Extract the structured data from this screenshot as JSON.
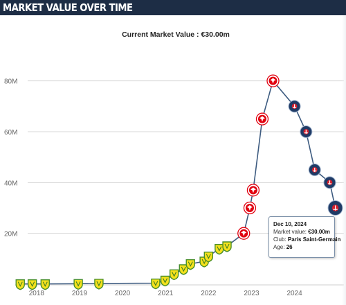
{
  "header": {
    "title": "MARKET VALUE OVER TIME"
  },
  "current_value_text": "Current Market Value : €30.00m",
  "tooltip": {
    "date": "Dec 10, 2024",
    "market_value_label": "Market value:",
    "market_value": "€30.00m",
    "club_label": "Club:",
    "club": "Paris Saint-Germain",
    "age_label": "Age:",
    "age": "26"
  },
  "colors": {
    "header_bg": "#1d2d45",
    "line": "#3d5b80",
    "nantes": "#f5e11c",
    "frankfurt": "#e1000f",
    "psg": "#1f3b66"
  },
  "chart_data": {
    "type": "line",
    "title": "",
    "xlabel": "",
    "ylabel": "",
    "x_ticks": [
      "2018",
      "2019",
      "2020",
      "2021",
      "2022",
      "2023",
      "2024"
    ],
    "y_ticks": [
      "20M",
      "40M",
      "60M",
      "80M"
    ],
    "ylim": [
      0,
      90
    ],
    "xlim": [
      2017.6,
      2025.15
    ],
    "grid": true,
    "series": [
      {
        "values": [
          {
            "x": 2017.62,
            "y": 0.1,
            "club": "nantes"
          },
          {
            "x": 2017.9,
            "y": 0.1,
            "club": "nantes"
          },
          {
            "x": 2018.2,
            "y": 0.1,
            "club": "nantes"
          },
          {
            "x": 2018.97,
            "y": 0.2,
            "club": "nantes"
          },
          {
            "x": 2019.45,
            "y": 0.3,
            "club": "nantes"
          },
          {
            "x": 2020.77,
            "y": 0.4,
            "club": "nantes"
          },
          {
            "x": 2020.99,
            "y": 1.5,
            "club": "nantes"
          },
          {
            "x": 2021.2,
            "y": 4.0,
            "club": "nantes"
          },
          {
            "x": 2021.42,
            "y": 6.0,
            "club": "nantes"
          },
          {
            "x": 2021.58,
            "y": 8.0,
            "club": "nantes"
          },
          {
            "x": 2021.9,
            "y": 9.0,
            "club": "nantes"
          },
          {
            "x": 2022.0,
            "y": 11.0,
            "club": "nantes"
          },
          {
            "x": 2022.25,
            "y": 14.0,
            "club": "nantes"
          },
          {
            "x": 2022.43,
            "y": 15.0,
            "club": "nantes"
          },
          {
            "x": 2022.82,
            "y": 20.0,
            "club": "frankfurt"
          },
          {
            "x": 2022.96,
            "y": 30.0,
            "club": "frankfurt"
          },
          {
            "x": 2023.04,
            "y": 37.0,
            "club": "frankfurt"
          },
          {
            "x": 2023.25,
            "y": 65.0,
            "club": "frankfurt"
          },
          {
            "x": 2023.5,
            "y": 80.0,
            "club": "frankfurt"
          },
          {
            "x": 2024.0,
            "y": 70.0,
            "club": "psg"
          },
          {
            "x": 2024.27,
            "y": 60.0,
            "club": "psg"
          },
          {
            "x": 2024.47,
            "y": 45.0,
            "club": "psg"
          },
          {
            "x": 2024.82,
            "y": 40.0,
            "club": "psg"
          },
          {
            "x": 2024.95,
            "y": 30.0,
            "club": "psg"
          }
        ]
      }
    ]
  }
}
